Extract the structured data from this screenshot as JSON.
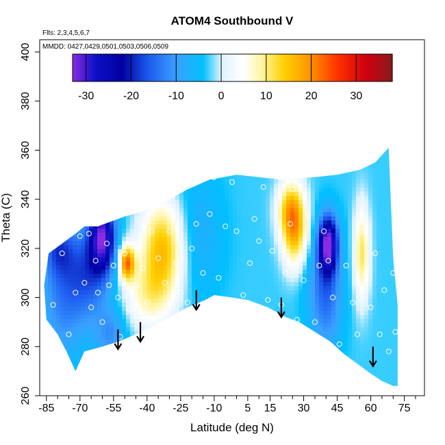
{
  "chart_data": {
    "type": "heatmap",
    "title": "ATOM4 Southbound V",
    "subtitle_flights": "Flts: 2,3,4,5,6,7",
    "subtitle_dates": "MMDD: 0427,0429,0501,0503,0506,0509",
    "xlabel": "Latitude (deg N)",
    "ylabel": "Theta (C)",
    "xlim": [
      -88,
      84
    ],
    "ylim": [
      260,
      405
    ],
    "x_ticks": [
      -85,
      -70,
      -55,
      -40,
      -25,
      -10,
      5,
      15,
      30,
      45,
      60,
      75
    ],
    "y_ticks": [
      260,
      280,
      300,
      320,
      340,
      360,
      380,
      400
    ],
    "colorbar": {
      "range": [
        -33,
        38
      ],
      "ticks": [
        -30,
        -20,
        -10,
        0,
        10,
        20,
        30
      ],
      "stops": [
        {
          "v": -33,
          "c": "#8a2be2"
        },
        {
          "v": -28,
          "c": "#1010c8"
        },
        {
          "v": -22,
          "c": "#0000a0"
        },
        {
          "v": -16,
          "c": "#1e5cf0"
        },
        {
          "v": -10,
          "c": "#3aa0ff"
        },
        {
          "v": -4,
          "c": "#00c0ff"
        },
        {
          "v": 0,
          "c": "#dff2ff"
        },
        {
          "v": 5,
          "c": "#ffffff"
        },
        {
          "v": 9,
          "c": "#fff5a0"
        },
        {
          "v": 14,
          "c": "#ffd000"
        },
        {
          "v": 20,
          "c": "#ff9000"
        },
        {
          "v": 26,
          "c": "#ff3000"
        },
        {
          "v": 32,
          "c": "#d00010"
        },
        {
          "v": 38,
          "c": "#8b1a1a"
        }
      ]
    },
    "domain_boundary": {
      "lower": [
        [
          -85,
          291
        ],
        [
          -80,
          285
        ],
        [
          -76,
          278
        ],
        [
          -72,
          270
        ],
        [
          -68,
          278
        ],
        [
          -60,
          280
        ],
        [
          -53,
          282
        ],
        [
          -45,
          285
        ],
        [
          -38,
          288
        ],
        [
          -30,
          292
        ],
        [
          -22,
          296
        ],
        [
          -14,
          299
        ],
        [
          -10,
          301
        ],
        [
          -2,
          300
        ],
        [
          5,
          299
        ],
        [
          14,
          296
        ],
        [
          22,
          292
        ],
        [
          28,
          290
        ],
        [
          35,
          286
        ],
        [
          42,
          282
        ],
        [
          48,
          277
        ],
        [
          54,
          273
        ],
        [
          60,
          269
        ],
        [
          65,
          266
        ],
        [
          70,
          264
        ],
        [
          72,
          264
        ]
      ],
      "upper": [
        [
          72,
          297
        ],
        [
          70,
          316
        ],
        [
          68,
          361
        ],
        [
          62,
          355
        ],
        [
          55,
          352
        ],
        [
          45,
          350
        ],
        [
          35,
          349
        ],
        [
          20,
          348
        ],
        [
          10,
          349
        ],
        [
          0,
          350
        ],
        [
          -12,
          348
        ],
        [
          -22,
          344
        ],
        [
          -32,
          339
        ],
        [
          -42,
          335
        ],
        [
          -50,
          333
        ],
        [
          -56,
          331
        ],
        [
          -62,
          329
        ],
        [
          -68,
          329
        ],
        [
          -72,
          326
        ],
        [
          -78,
          322
        ],
        [
          -84,
          318
        ],
        [
          -86,
          305
        ]
      ]
    },
    "field_features": [
      {
        "x": -60,
        "y": 325,
        "v": -26,
        "sx": 4,
        "sy": 10
      },
      {
        "x": -66,
        "y": 310,
        "v": -12,
        "sx": 7,
        "sy": 14
      },
      {
        "x": -78,
        "y": 300,
        "v": -9,
        "sx": 7,
        "sy": 18
      },
      {
        "x": -80,
        "y": 320,
        "v": -10,
        "sx": 5,
        "sy": 8
      },
      {
        "x": -56,
        "y": 285,
        "v": -8,
        "sx": 5,
        "sy": 8
      },
      {
        "x": -49,
        "y": 314,
        "v": 24,
        "sx": 2.5,
        "sy": 5
      },
      {
        "x": -33,
        "y": 320,
        "v": 19,
        "sx": 7,
        "sy": 14
      },
      {
        "x": -40,
        "y": 300,
        "v": 9,
        "sx": 8,
        "sy": 10
      },
      {
        "x": -18,
        "y": 325,
        "v": -5,
        "sx": 8,
        "sy": 18
      },
      {
        "x": 26,
        "y": 328,
        "v": 20,
        "sx": 4,
        "sy": 12
      },
      {
        "x": 23,
        "y": 336,
        "v": 10,
        "sx": 4,
        "sy": 8
      },
      {
        "x": 41,
        "y": 322,
        "v": -28,
        "sx": 3,
        "sy": 8
      },
      {
        "x": 40,
        "y": 302,
        "v": -12,
        "sx": 5,
        "sy": 16
      },
      {
        "x": 56,
        "y": 318,
        "v": 14,
        "sx": 2.5,
        "sy": 14
      },
      {
        "x": 30,
        "y": 310,
        "v": -2,
        "sx": 6,
        "sy": 10
      }
    ],
    "sample_points": [
      [
        -82,
        297
      ],
      [
        -78,
        318
      ],
      [
        -75,
        285
      ],
      [
        -72,
        302
      ],
      [
        -70,
        325
      ],
      [
        -68,
        306
      ],
      [
        -66,
        326
      ],
      [
        -65,
        296
      ],
      [
        -63,
        315
      ],
      [
        -62,
        302
      ],
      [
        -60,
        290
      ],
      [
        -58,
        322
      ],
      [
        -57,
        305
      ],
      [
        -55,
        313
      ],
      [
        -53,
        300
      ],
      [
        -52,
        284
      ],
      [
        -50,
        318
      ],
      [
        -48,
        295
      ],
      [
        -45,
        305
      ],
      [
        -42,
        312
      ],
      [
        -40,
        298
      ],
      [
        -38,
        327
      ],
      [
        -35,
        316
      ],
      [
        -32,
        306
      ],
      [
        -30,
        327
      ],
      [
        -27,
        314
      ],
      [
        -25,
        302
      ],
      [
        -22,
        298
      ],
      [
        -20,
        320
      ],
      [
        -18,
        330
      ],
      [
        -15,
        310
      ],
      [
        -12,
        334
      ],
      [
        -10,
        349
      ],
      [
        -8,
        308
      ],
      [
        -5,
        329
      ],
      [
        -2,
        347
      ],
      [
        0,
        327
      ],
      [
        3,
        301
      ],
      [
        6,
        314
      ],
      [
        8,
        332
      ],
      [
        10,
        323
      ],
      [
        12,
        345
      ],
      [
        14,
        299
      ],
      [
        16,
        319
      ],
      [
        18,
        340
      ],
      [
        20,
        297
      ],
      [
        22,
        310
      ],
      [
        24,
        330
      ],
      [
        25,
        344
      ],
      [
        27,
        291
      ],
      [
        28,
        316
      ],
      [
        30,
        307
      ],
      [
        32,
        334
      ],
      [
        35,
        290
      ],
      [
        37,
        313
      ],
      [
        39,
        327
      ],
      [
        41,
        315
      ],
      [
        43,
        300
      ],
      [
        46,
        281
      ],
      [
        49,
        313
      ],
      [
        52,
        298
      ],
      [
        54,
        285
      ],
      [
        56,
        327
      ],
      [
        58,
        310
      ],
      [
        60,
        296
      ],
      [
        62,
        318
      ],
      [
        64,
        285
      ],
      [
        66,
        303
      ],
      [
        68,
        278
      ],
      [
        70,
        310
      ],
      [
        71,
        286
      ]
    ],
    "arrows": [
      {
        "x": -53,
        "y_top": 287,
        "y_tip": 279
      },
      {
        "x": -43,
        "y_top": 290,
        "y_tip": 282
      },
      {
        "x": -18,
        "y_top": 303,
        "y_tip": 295
      },
      {
        "x": 20,
        "y_top": 300,
        "y_tip": 292
      },
      {
        "x": 61,
        "y_top": 280,
        "y_tip": 272
      }
    ]
  }
}
